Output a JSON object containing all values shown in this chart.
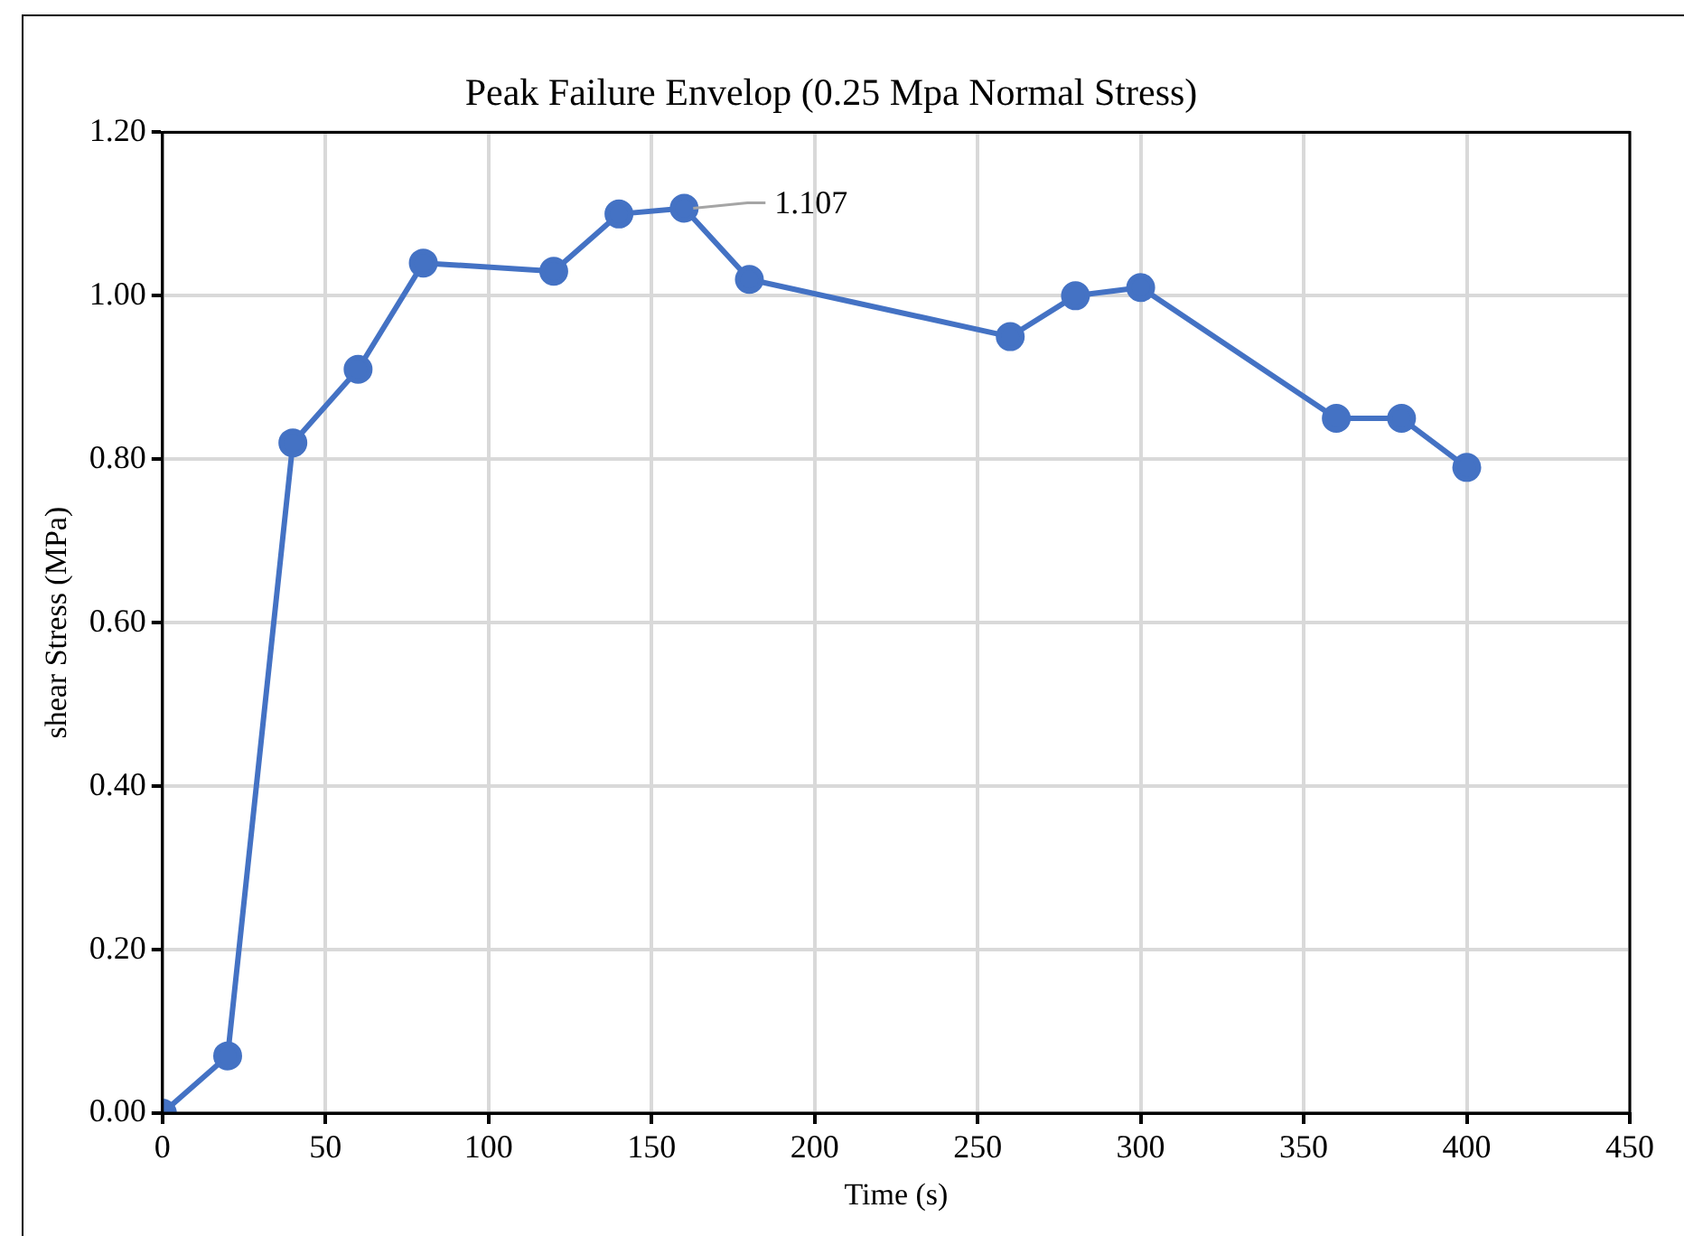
{
  "chart_data": {
    "type": "line",
    "title": "Peak Failure Envelop (0.25 Mpa Normal Stress)",
    "xlabel": "Time (s)",
    "ylabel": "shear Stress (MPa)",
    "x": [
      0,
      20,
      40,
      60,
      80,
      120,
      140,
      160,
      180,
      260,
      280,
      300,
      360,
      380,
      400
    ],
    "series": [
      {
        "color": "#4472c4",
        "values": [
          0,
          0.07,
          0.82,
          0.91,
          1.04,
          1.03,
          1.1,
          1.107,
          1.02,
          0.95,
          1.0,
          1.01,
          0.85,
          0.85,
          0.79
        ]
      }
    ],
    "xlim": [
      0,
      450
    ],
    "xticks": [
      0,
      50,
      100,
      150,
      200,
      250,
      300,
      350,
      400,
      450
    ],
    "ylim": [
      0,
      1.2
    ],
    "yticks": [
      {
        "value": 0,
        "label": "0.00"
      },
      {
        "value": 0.2,
        "label": "0.20"
      },
      {
        "value": 0.4,
        "label": "0.40"
      },
      {
        "value": 0.6,
        "label": "0.60"
      },
      {
        "value": 0.8,
        "label": "0.80"
      },
      {
        "value": 1.0,
        "label": "1.00"
      },
      {
        "value": 1.2,
        "label": "1.20"
      }
    ],
    "annotations": [
      {
        "text": "1.107",
        "x": 160,
        "y": 1.107
      }
    ],
    "grid": true,
    "legend": false,
    "marker": "circle",
    "line_style": "solid"
  }
}
